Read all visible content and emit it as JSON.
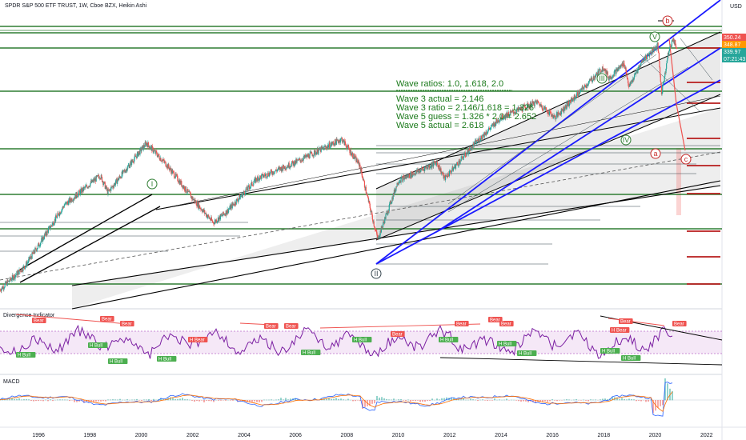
{
  "header": {
    "title": "SPDR S&P 500 ETF TRUST, 1W, Cboe BZX, Heikin Ashi",
    "currency": "USD"
  },
  "annotation": {
    "lines": [
      "Wave ratios: 1.0, 1.618, 2.0",
      "Wave 3 actual = 2.146",
      "Wave 3 ratio = 2.146/1.618 = 1.326",
      "Wave 5 guess = 1.326 * 2.0 = 2.652",
      "Wave 5 actual = 2.618"
    ]
  },
  "wave_labels": {
    "impulse": [
      "I",
      "II",
      "III",
      "IV",
      "V"
    ],
    "corrective": [
      "a",
      "b",
      "c"
    ]
  },
  "price_labels": [
    {
      "text": "350.24",
      "color": "#ef5350"
    },
    {
      "text": "348.87",
      "color": "#ff9800"
    },
    {
      "text": "339.97",
      "color": "#26a69a"
    },
    {
      "text": "07:21:43",
      "color": "#26a69a"
    }
  ],
  "panes": {
    "divergence": "Divergence Indicator",
    "macd": "MACD"
  },
  "signals": {
    "bear": "Bear",
    "h_bear": "H Bear",
    "h_bull": "H Bull"
  },
  "colors": {
    "up": "#26a69a",
    "down": "#ef5350",
    "support": "#2e7d32",
    "channel": "#1a1aff",
    "rsi": "#7b1fa2",
    "macd": "#2962ff",
    "signal": "#ff6d00",
    "resist": "#b71c1c"
  },
  "chart_data": [
    {
      "type": "candlestick",
      "title": "SPDR S&P 500 ETF TRUST, 1W, Cboe BZX, Heikin Ashi",
      "x_range": [
        1994.5,
        2022.6
      ],
      "x_ticks": [
        "1996",
        "1998",
        "2000",
        "2002",
        "2004",
        "2006",
        "2008",
        "2010",
        "2012",
        "2014",
        "2016",
        "2018",
        "2020",
        "2022"
      ],
      "y_scale": "log",
      "y_range": [
        40,
        420
      ],
      "price_path": [
        {
          "x": 1994.5,
          "y": 45
        },
        {
          "x": 1995.5,
          "y": 55
        },
        {
          "x": 1997.0,
          "y": 90
        },
        {
          "x": 1998.4,
          "y": 115
        },
        {
          "x": 1998.7,
          "y": 100
        },
        {
          "x": 2000.2,
          "y": 150
        },
        {
          "x": 2001.0,
          "y": 125
        },
        {
          "x": 2002.0,
          "y": 95
        },
        {
          "x": 2002.8,
          "y": 78
        },
        {
          "x": 2003.3,
          "y": 85
        },
        {
          "x": 2004.5,
          "y": 112
        },
        {
          "x": 2006.0,
          "y": 128
        },
        {
          "x": 2007.8,
          "y": 155
        },
        {
          "x": 2008.5,
          "y": 125
        },
        {
          "x": 2009.2,
          "y": 68
        },
        {
          "x": 2010.0,
          "y": 110
        },
        {
          "x": 2011.5,
          "y": 128
        },
        {
          "x": 2011.8,
          "y": 112
        },
        {
          "x": 2013.0,
          "y": 150
        },
        {
          "x": 2014.0,
          "y": 185
        },
        {
          "x": 2015.4,
          "y": 210
        },
        {
          "x": 2016.1,
          "y": 185
        },
        {
          "x": 2017.0,
          "y": 225
        },
        {
          "x": 2018.0,
          "y": 280
        },
        {
          "x": 2018.2,
          "y": 255
        },
        {
          "x": 2018.8,
          "y": 290
        },
        {
          "x": 2018.98,
          "y": 237
        },
        {
          "x": 2019.5,
          "y": 295
        },
        {
          "x": 2020.1,
          "y": 335
        },
        {
          "x": 2020.25,
          "y": 225
        },
        {
          "x": 2020.5,
          "y": 310
        },
        {
          "x": 2020.7,
          "y": 355
        },
        {
          "x": 2020.85,
          "y": 325
        }
      ],
      "last_prices": [
        350.24,
        348.87,
        339.97
      ],
      "wave_points": [
        {
          "label": "I",
          "x": 2000.2
        },
        {
          "label": "II",
          "x": 2009.2
        },
        {
          "label": "III",
          "x": 2018.0
        },
        {
          "label": "IV",
          "x": 2018.98
        },
        {
          "label": "V",
          "x": 2020.1
        },
        {
          "label": "a",
          "x": 2020.25
        },
        {
          "label": "b",
          "x": 2020.7
        },
        {
          "label": "c",
          "x": 2021.2
        }
      ]
    },
    {
      "type": "line",
      "title": "Divergence Indicator",
      "series": [
        {
          "name": "RSI"
        }
      ]
    },
    {
      "type": "line",
      "title": "MACD",
      "series": [
        {
          "name": "MACD"
        },
        {
          "name": "Signal"
        },
        {
          "name": "Histogram"
        }
      ]
    }
  ]
}
